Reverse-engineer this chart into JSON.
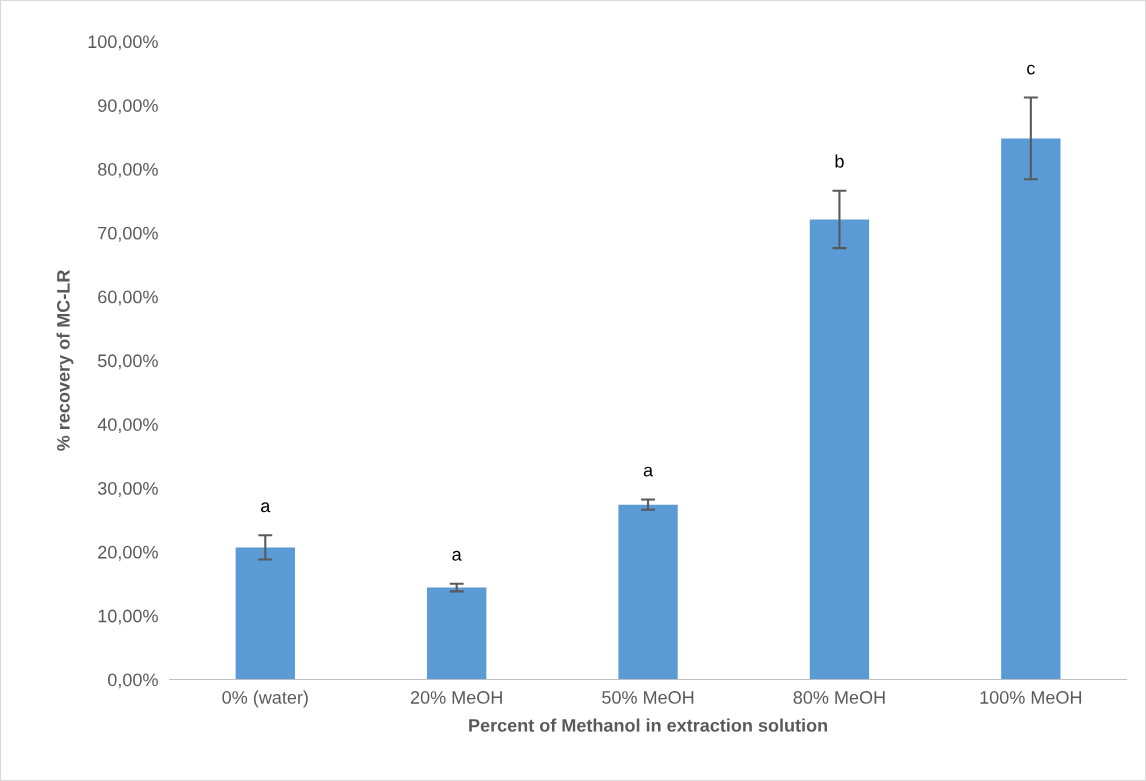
{
  "chart_data": {
    "type": "bar",
    "xlabel": "Percent of Methanol in extraction solution",
    "ylabel": "% recovery of MC-LR",
    "categories": [
      "0% (water)",
      "20% MeOH",
      "50% MeOH",
      "80% MeOH",
      "100% MeOH"
    ],
    "values": [
      20.7,
      14.4,
      27.4,
      72.1,
      84.8
    ],
    "errors": [
      1.9,
      0.6,
      0.8,
      4.5,
      6.4
    ],
    "color": "#5b9bd5",
    "ylim": [
      0,
      100
    ],
    "yticks": [
      {
        "value": 0,
        "label": "0,00%"
      },
      {
        "value": 10,
        "label": "10,00%"
      },
      {
        "value": 20,
        "label": "20,00%"
      },
      {
        "value": 30,
        "label": "30,00%"
      },
      {
        "value": 40,
        "label": "40,00%"
      },
      {
        "value": 50,
        "label": "50,00%"
      },
      {
        "value": 60,
        "label": "60,00%"
      },
      {
        "value": 70,
        "label": "70,00%"
      },
      {
        "value": 80,
        "label": "80,00%"
      },
      {
        "value": 90,
        "label": "90,00%"
      },
      {
        "value": 100,
        "label": "100,00%"
      }
    ],
    "annotations": [
      "a",
      "a",
      "a",
      "b",
      "c"
    ],
    "grid": false,
    "legend": false
  }
}
